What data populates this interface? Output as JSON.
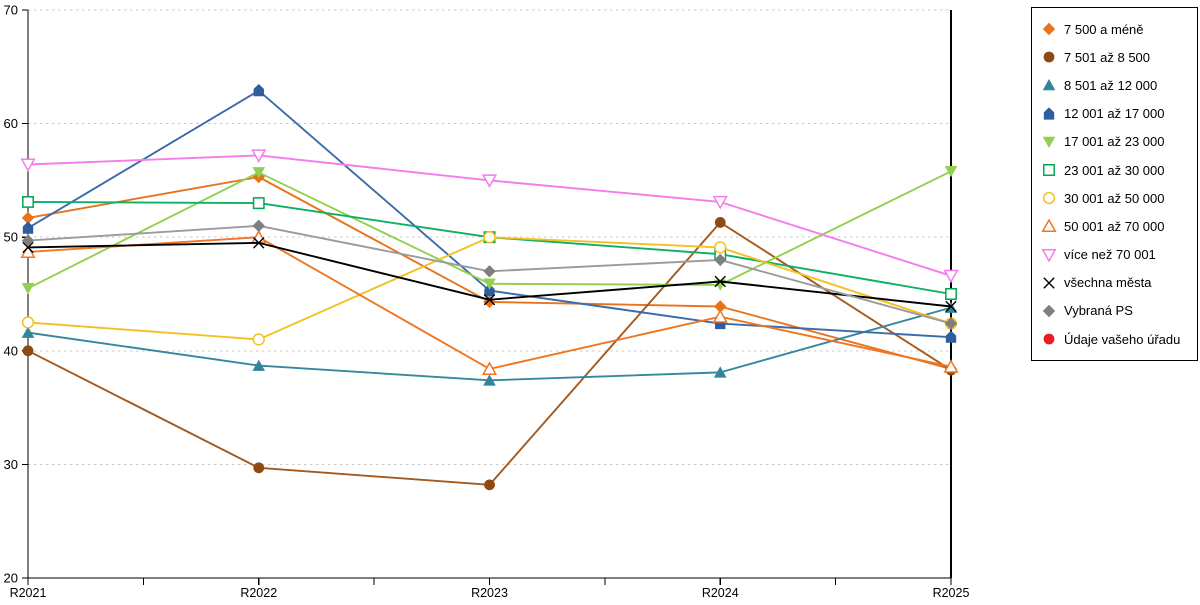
{
  "chart_data": {
    "type": "line",
    "title": "",
    "xlabel": "",
    "ylabel": "",
    "x_categories": [
      "R2021",
      "R2022",
      "R2023",
      "R2024",
      "R2025"
    ],
    "ylim": [
      20,
      70
    ],
    "y_ticks": [
      20,
      30,
      40,
      50,
      60,
      70
    ],
    "grid": "horizontal-dashed",
    "legend_position": "top-right-outside",
    "series": [
      {
        "name": "7 500 a méně",
        "marker": "diamond",
        "fill": "solid",
        "color": "#E8731D",
        "line_color": "#E8731D",
        "values": [
          51.7,
          55.3,
          44.3,
          43.9,
          38.4
        ]
      },
      {
        "name": "7 501 až 8 500",
        "marker": "circle",
        "fill": "solid",
        "color": "#8E4A10",
        "line_color": "#A4591E",
        "values": [
          40.0,
          29.7,
          28.2,
          51.3,
          38.3
        ]
      },
      {
        "name": "8 501 až 12 000",
        "marker": "triangle-up",
        "fill": "solid",
        "color": "#31859C",
        "line_color": "#35889E",
        "values": [
          41.6,
          38.7,
          37.4,
          38.1,
          43.8
        ]
      },
      {
        "name": "12 001 až 17 000",
        "marker": "pentagon",
        "fill": "solid",
        "color": "#2F5D9E",
        "line_color": "#3C6BAA",
        "values": [
          50.8,
          62.9,
          45.3,
          42.4,
          41.2
        ]
      },
      {
        "name": "17 001 až 23 000",
        "marker": "triangle-down",
        "fill": "solid",
        "color": "#92D050",
        "line_color": "#92D050",
        "values": [
          45.5,
          55.7,
          45.9,
          45.8,
          55.8
        ]
      },
      {
        "name": "23 001 až 30 000",
        "marker": "square",
        "fill": "open",
        "color": "#00A651",
        "line_color": "#0DAE66",
        "values": [
          53.1,
          53.0,
          50.0,
          48.5,
          45.0
        ]
      },
      {
        "name": "30 001 až 50 000",
        "marker": "circle",
        "fill": "open",
        "color": "#F3C11F",
        "line_color": "#F3C11F",
        "values": [
          42.5,
          41.0,
          50.0,
          49.1,
          42.4
        ]
      },
      {
        "name": "50 001 až 70 000",
        "marker": "triangle-up",
        "fill": "open",
        "color": "#EF7622",
        "line_color": "#EF7622",
        "values": [
          48.7,
          50.0,
          38.4,
          43.0,
          38.6
        ]
      },
      {
        "name": "více než 70 001",
        "marker": "triangle-down",
        "fill": "open",
        "color": "#F47CEC",
        "line_color": "#F47CEC",
        "values": [
          56.4,
          57.2,
          55.0,
          53.1,
          46.6
        ]
      },
      {
        "name": "všechna města",
        "marker": "x",
        "fill": "open",
        "color": "#000000",
        "line_color": "#000000",
        "values": [
          49.1,
          49.5,
          44.5,
          46.1,
          43.9
        ]
      },
      {
        "name": "Vybraná PS",
        "marker": "diamond",
        "fill": "solid",
        "color": "#7F7F7F",
        "line_color": "#9B9B9B",
        "values": [
          49.7,
          51.0,
          47.0,
          48.0,
          42.4
        ]
      },
      {
        "name": "Údaje vašeho úřadu",
        "marker": "circle",
        "fill": "solid",
        "color": "#EC1C24",
        "line_color": "#EC1C24",
        "values": [
          null,
          null,
          null,
          null,
          null
        ]
      }
    ]
  },
  "colors": {
    "background": "#FFFFFF",
    "grid": "#C9C9C9",
    "axis": "#000000",
    "legend_border": "#000000"
  }
}
